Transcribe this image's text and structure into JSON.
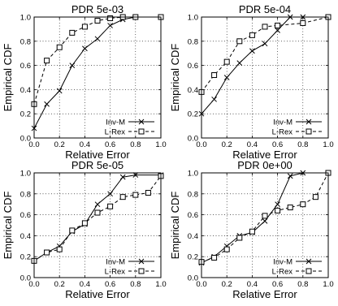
{
  "chart_data": [
    {
      "type": "line",
      "title": "PDR 5e-03",
      "xlabel": "Relative Error",
      "ylabel": "Empirical CDF",
      "xlim": [
        0,
        1
      ],
      "ylim": [
        0,
        1
      ],
      "xticks": [
        "0.0",
        "0.2",
        "0.4",
        "0.6",
        "0.8",
        "1.0"
      ],
      "yticks": [
        "0.0",
        "0.2",
        "0.4",
        "0.6",
        "0.8",
        "1.0"
      ],
      "grid": true,
      "legend_position": "bottom-right",
      "series": [
        {
          "name": "Inv-M",
          "style": "solid",
          "marker": "x",
          "x": [
            0.0,
            0.1,
            0.2,
            0.3,
            0.4,
            0.5,
            0.6,
            0.7,
            0.8,
            1.0
          ],
          "y": [
            0.08,
            0.28,
            0.39,
            0.6,
            0.74,
            0.82,
            0.93,
            0.98,
            1.0,
            1.0
          ]
        },
        {
          "name": "L-Rex",
          "style": "dashed",
          "marker": "square",
          "x": [
            0.0,
            0.1,
            0.2,
            0.3,
            0.4,
            0.5,
            0.6,
            0.7,
            0.8,
            1.0
          ],
          "y": [
            0.28,
            0.64,
            0.75,
            0.87,
            0.92,
            0.97,
            0.99,
            1.0,
            1.0,
            1.0
          ]
        }
      ]
    },
    {
      "type": "line",
      "title": "PDR 5e-04",
      "xlabel": "Relative Error",
      "ylabel": "Empirical CDF",
      "xlim": [
        0,
        1
      ],
      "ylim": [
        0,
        1
      ],
      "xticks": [
        "0.0",
        "0.2",
        "0.4",
        "0.6",
        "0.8",
        "1.0"
      ],
      "yticks": [
        "0.0",
        "0.2",
        "0.4",
        "0.6",
        "0.8",
        "1.0"
      ],
      "grid": true,
      "legend_position": "bottom-right",
      "series": [
        {
          "name": "Inv-M",
          "style": "solid",
          "marker": "x",
          "x": [
            0.0,
            0.1,
            0.2,
            0.3,
            0.4,
            0.5,
            0.6,
            0.7,
            0.8,
            1.0
          ],
          "y": [
            0.2,
            0.32,
            0.5,
            0.62,
            0.72,
            0.78,
            0.89,
            1.0,
            1.0,
            1.0
          ]
        },
        {
          "name": "L-Rex",
          "style": "dashed",
          "marker": "square",
          "x": [
            0.0,
            0.1,
            0.2,
            0.3,
            0.4,
            0.5,
            0.6,
            0.8,
            1.0
          ],
          "y": [
            0.38,
            0.52,
            0.63,
            0.8,
            0.85,
            0.92,
            0.93,
            0.95,
            1.0
          ]
        }
      ]
    },
    {
      "type": "line",
      "title": "PDR 5e-05",
      "xlabel": "Relative Error",
      "ylabel": "Empirical CDF",
      "xlim": [
        0,
        1
      ],
      "ylim": [
        0,
        1
      ],
      "xticks": [
        "0.0",
        "0.2",
        "0.4",
        "0.6",
        "0.8",
        "1.0"
      ],
      "yticks": [
        "0.0",
        "0.2",
        "0.4",
        "0.6",
        "0.8",
        "1.0"
      ],
      "grid": true,
      "legend_position": "bottom-right",
      "series": [
        {
          "name": "Inv-M",
          "style": "solid",
          "marker": "x",
          "x": [
            0.0,
            0.1,
            0.2,
            0.3,
            0.4,
            0.5,
            0.6,
            0.7,
            0.8,
            1.0
          ],
          "y": [
            0.16,
            0.24,
            0.3,
            0.44,
            0.51,
            0.7,
            0.8,
            0.96,
            0.98,
            0.98
          ]
        },
        {
          "name": "L-Rex",
          "style": "dashed",
          "marker": "square",
          "x": [
            0.0,
            0.1,
            0.2,
            0.3,
            0.4,
            0.5,
            0.6,
            0.7,
            0.8,
            0.9,
            1.0
          ],
          "y": [
            0.16,
            0.24,
            0.27,
            0.45,
            0.52,
            0.62,
            0.68,
            0.77,
            0.79,
            0.81,
            0.97
          ]
        }
      ]
    },
    {
      "type": "line",
      "title": "PDR 0e+00",
      "xlabel": "Relative Error",
      "ylabel": "Empirical CDF",
      "xlim": [
        0,
        1
      ],
      "ylim": [
        0,
        1
      ],
      "xticks": [
        "0.0",
        "0.2",
        "0.4",
        "0.6",
        "0.8",
        "1.0"
      ],
      "yticks": [
        "0.0",
        "0.2",
        "0.4",
        "0.6",
        "0.8",
        "1.0"
      ],
      "grid": true,
      "legend_position": "bottom-right",
      "series": [
        {
          "name": "Inv-M",
          "style": "solid",
          "marker": "x",
          "x": [
            0.0,
            0.1,
            0.2,
            0.3,
            0.4,
            0.5,
            0.6,
            0.7,
            0.8,
            1.0
          ],
          "y": [
            0.14,
            0.2,
            0.3,
            0.4,
            0.43,
            0.54,
            0.7,
            0.97,
            1.0,
            1.0
          ]
        },
        {
          "name": "L-Rex",
          "style": "dashed",
          "marker": "square",
          "x": [
            0.0,
            0.1,
            0.2,
            0.3,
            0.4,
            0.5,
            0.6,
            0.7,
            0.8,
            0.9,
            1.0
          ],
          "y": [
            0.15,
            0.19,
            0.27,
            0.38,
            0.44,
            0.59,
            0.64,
            0.67,
            0.7,
            0.77,
            1.0
          ]
        }
      ]
    }
  ]
}
